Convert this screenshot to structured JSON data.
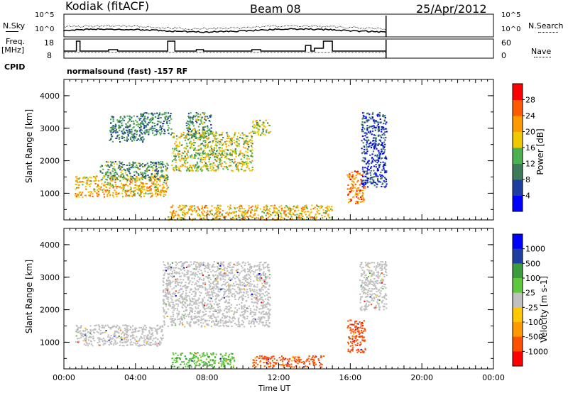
{
  "header": {
    "title": "Kodiak (fitACF)",
    "beam": "Beam 08",
    "date": "25/Apr/2012"
  },
  "params": {
    "nsky_label": "N.Sky",
    "nsearch_label": "N.Search",
    "freq_label_1": "Freq.",
    "freq_label_2": "[MHz]",
    "nave_label": "Nave",
    "cpid_label": "CPID",
    "cpid_text": "normalsound (fast) -157 RF",
    "nsky_ticks": [
      "10^5",
      "10^0"
    ],
    "nsearch_ticks": [
      "10^5",
      "10^0"
    ],
    "freq_ticks": [
      "18",
      "8"
    ],
    "nave_ticks": [
      "60",
      "0"
    ]
  },
  "colors": {
    "power_scale": [
      "#0000ff",
      "#1e3fa0",
      "#3c7a5a",
      "#4caf50",
      "#f0c800",
      "#ff9900",
      "#ff5a00",
      "#ff0000"
    ],
    "velocity_scale": [
      "#ff0000",
      "#ff5000",
      "#ff9900",
      "#ffc800",
      "#c0c0c0",
      "#5fc83c",
      "#3c9b3c",
      "#1e3fa0",
      "#0000ff"
    ],
    "ground_scatter": "#bfbfbf"
  },
  "chart_data": [
    {
      "type": "heatmap",
      "panel": "power",
      "ylabel": "Slant Range [km]",
      "yticks": [
        "4000",
        "3000",
        "2000",
        "1000"
      ],
      "ylim": [
        180,
        4500
      ],
      "xlim": [
        0,
        24
      ],
      "colorbar_label": "Power [dB]",
      "colorbar_ticks": [
        "28",
        "24",
        "20",
        "16",
        "12",
        "8",
        "4"
      ],
      "clim": [
        0,
        32
      ],
      "features": [
        {
          "t0": 0.6,
          "t1": 5.8,
          "r0": 900,
          "r1": 1550,
          "level": 20,
          "desc": "band"
        },
        {
          "t0": 2.0,
          "t1": 5.8,
          "r0": 1400,
          "r1": 2000,
          "level": 12
        },
        {
          "t0": 2.5,
          "t1": 4.5,
          "r0": 2600,
          "r1": 3400,
          "level": 10
        },
        {
          "t0": 4.2,
          "t1": 6.0,
          "r0": 2800,
          "r1": 3500,
          "level": 10
        },
        {
          "t0": 6.0,
          "t1": 10.5,
          "r0": 1700,
          "r1": 2900,
          "level": 16
        },
        {
          "t0": 6.8,
          "t1": 8.2,
          "r0": 2700,
          "r1": 3500,
          "level": 12
        },
        {
          "t0": 10.5,
          "t1": 11.5,
          "r0": 2800,
          "r1": 3300,
          "level": 16
        },
        {
          "t0": 5.8,
          "t1": 15.0,
          "r0": 200,
          "r1": 650,
          "level": 20
        },
        {
          "t0": 15.8,
          "t1": 16.8,
          "r0": 700,
          "r1": 1700,
          "level": 24
        },
        {
          "t0": 16.6,
          "t1": 18.0,
          "r0": 1200,
          "r1": 3500,
          "level": 6
        }
      ]
    },
    {
      "type": "heatmap",
      "panel": "velocity",
      "ylabel": "Slant Range [km]",
      "xlabel": "Time UT",
      "yticks": [
        "4000",
        "3000",
        "2000",
        "1000"
      ],
      "ylim": [
        180,
        4500
      ],
      "xlim": [
        0,
        24
      ],
      "xticks": [
        "00:00",
        "04:00",
        "08:00",
        "12:00",
        "16:00",
        "20:00",
        "00:00"
      ],
      "colorbar_label": "Velocity [m s-1]",
      "colorbar_ticks": [
        "1000",
        "500",
        "100",
        "25",
        "-25",
        "-100",
        "-500",
        "-1000"
      ],
      "clim": [
        -1000,
        1000
      ],
      "features": [
        {
          "t0": 0.6,
          "t1": 5.5,
          "r0": 900,
          "r1": 1550,
          "velocity": 0,
          "desc": "ground scatter"
        },
        {
          "t0": 5.5,
          "t1": 11.5,
          "r0": 1500,
          "r1": 3500,
          "velocity": 0,
          "desc": "ground scatter"
        },
        {
          "t0": 6.0,
          "t1": 9.5,
          "r0": 250,
          "r1": 700,
          "velocity": 80
        },
        {
          "t0": 10.5,
          "t1": 14.5,
          "r0": 250,
          "r1": 600,
          "velocity": -150
        },
        {
          "t0": 15.8,
          "t1": 16.8,
          "r0": 700,
          "r1": 1700,
          "velocity": -400
        },
        {
          "t0": 16.5,
          "t1": 18.0,
          "r0": 2000,
          "r1": 3500,
          "velocity": 0,
          "desc": "ground scatter"
        }
      ]
    }
  ]
}
